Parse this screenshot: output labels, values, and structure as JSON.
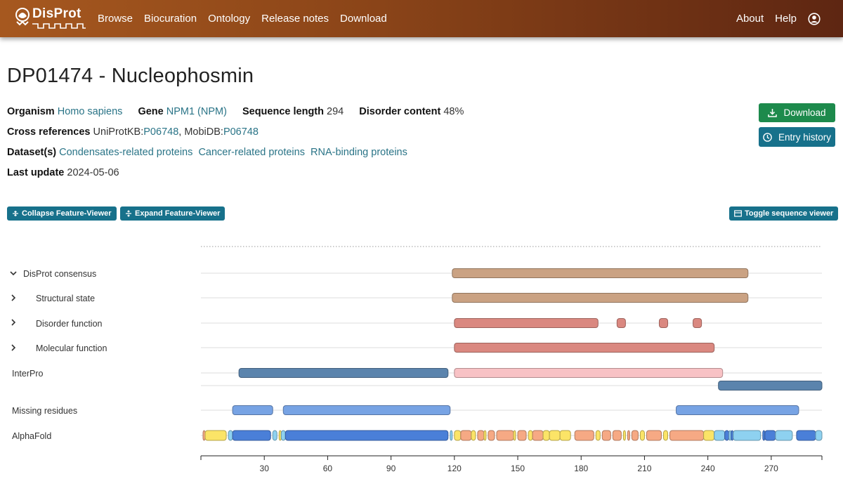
{
  "header": {
    "logo_text": "DisProt",
    "nav": [
      "Browse",
      "Biocuration",
      "Ontology",
      "Release notes",
      "Download"
    ],
    "nav_right": [
      "About",
      "Help"
    ]
  },
  "entry": {
    "title": "DP01474 - Nucleophosmin",
    "organism_label": "Organism",
    "organism": "Homo sapiens",
    "gene_label": "Gene",
    "gene": "NPM1 (NPM)",
    "seq_len_label": "Sequence length",
    "seq_len": "294",
    "disorder_label": "Disorder content",
    "disorder": "48%",
    "xref_label": "Cross references",
    "uniprot_prefix": "UniProtKB:",
    "uniprot_id": "P06748",
    "mobidb_prefix": ", MobiDB:",
    "mobidb_id": "P06748",
    "dataset_label": "Dataset(s)",
    "datasets": [
      "Condensates-related proteins",
      "Cancer-related proteins",
      "RNA-binding proteins"
    ],
    "update_label": "Last update",
    "update": "2024-05-06"
  },
  "buttons": {
    "download": "Download",
    "history": "Entry history",
    "collapse": "Collapse Feature-Viewer",
    "expand": "Expand Feature-Viewer",
    "toggle_seq": "Toggle sequence viewer"
  },
  "tracks": {
    "labels": [
      "DisProt consensus",
      "Structural state",
      "Disorder function",
      "Molecular function",
      "InterPro",
      "Missing residues",
      "AlphaFold"
    ]
  },
  "chart_data": {
    "type": "feature-track",
    "seq_length": 294,
    "x_ticks": [
      30,
      60,
      90,
      120,
      150,
      180,
      210,
      240,
      270
    ],
    "colors": {
      "consensus": "#caa283",
      "disorder": "#da8880",
      "interpro_dark": "#5b84ad",
      "interpro_light": "#f8c2c5",
      "missing": "#77a3e4",
      "af_very_high": "#4a7fd8",
      "af_confident": "#8ed1f0",
      "af_low": "#fbe467",
      "af_very_low": "#f6a984"
    },
    "features": {
      "consensus": [
        [
          119,
          259
        ]
      ],
      "structural": [
        [
          119,
          259
        ]
      ],
      "disorder_function": [
        [
          120,
          188
        ],
        [
          197,
          201
        ],
        [
          217,
          221
        ],
        [
          233,
          237
        ]
      ],
      "molecular_function": [
        [
          120,
          243
        ]
      ],
      "interpro_a": [
        [
          18,
          117
        ],
        [
          120,
          247
        ]
      ],
      "interpro_b": [
        [
          245,
          294
        ]
      ],
      "missing": [
        [
          15,
          34
        ],
        [
          39,
          118
        ],
        [
          225,
          283
        ]
      ],
      "alphafold": [
        [
          1,
          2,
          "af_very_low"
        ],
        [
          2,
          12,
          "af_low"
        ],
        [
          13,
          15,
          "af_confident"
        ],
        [
          15,
          33,
          "af_very_high"
        ],
        [
          34,
          36,
          "af_confident"
        ],
        [
          37,
          38,
          "af_low"
        ],
        [
          38,
          40,
          "af_confident"
        ],
        [
          40,
          117,
          "af_very_high"
        ],
        [
          118,
          119,
          "af_confident"
        ],
        [
          120,
          123,
          "af_low"
        ],
        [
          123,
          128,
          "af_very_low"
        ],
        [
          128,
          130,
          "af_low"
        ],
        [
          131,
          134,
          "af_very_low"
        ],
        [
          134,
          135,
          "af_low"
        ],
        [
          136,
          139,
          "af_very_low"
        ],
        [
          140,
          148,
          "af_very_low"
        ],
        [
          148,
          149,
          "af_low"
        ],
        [
          150,
          154,
          "af_very_low"
        ],
        [
          155,
          157,
          "af_low"
        ],
        [
          157,
          162,
          "af_very_low"
        ],
        [
          162,
          165,
          "af_low"
        ],
        [
          165,
          170,
          "af_low"
        ],
        [
          170,
          175,
          "af_low"
        ],
        [
          177,
          186,
          "af_very_low"
        ],
        [
          187,
          189,
          "af_low"
        ],
        [
          190,
          194,
          "af_very_low"
        ],
        [
          195,
          199,
          "af_very_low"
        ],
        [
          200,
          201,
          "af_low"
        ],
        [
          202,
          203,
          "af_very_low"
        ],
        [
          204,
          207,
          "af_very_low"
        ],
        [
          208,
          210,
          "af_low"
        ],
        [
          211,
          218,
          "af_very_low"
        ],
        [
          219,
          221,
          "af_low"
        ],
        [
          222,
          238,
          "af_very_low"
        ],
        [
          238,
          243,
          "af_low"
        ],
        [
          243,
          248,
          "af_confident"
        ],
        [
          248,
          250,
          "af_very_high"
        ],
        [
          250,
          251,
          "af_confident"
        ],
        [
          251,
          252,
          "af_very_high"
        ],
        [
          252,
          265,
          "af_confident"
        ],
        [
          266,
          267,
          "af_very_high"
        ],
        [
          267,
          272,
          "af_very_high"
        ],
        [
          272,
          280,
          "af_confident"
        ],
        [
          282,
          291,
          "af_very_high"
        ],
        [
          291,
          294,
          "af_confident"
        ]
      ]
    }
  }
}
